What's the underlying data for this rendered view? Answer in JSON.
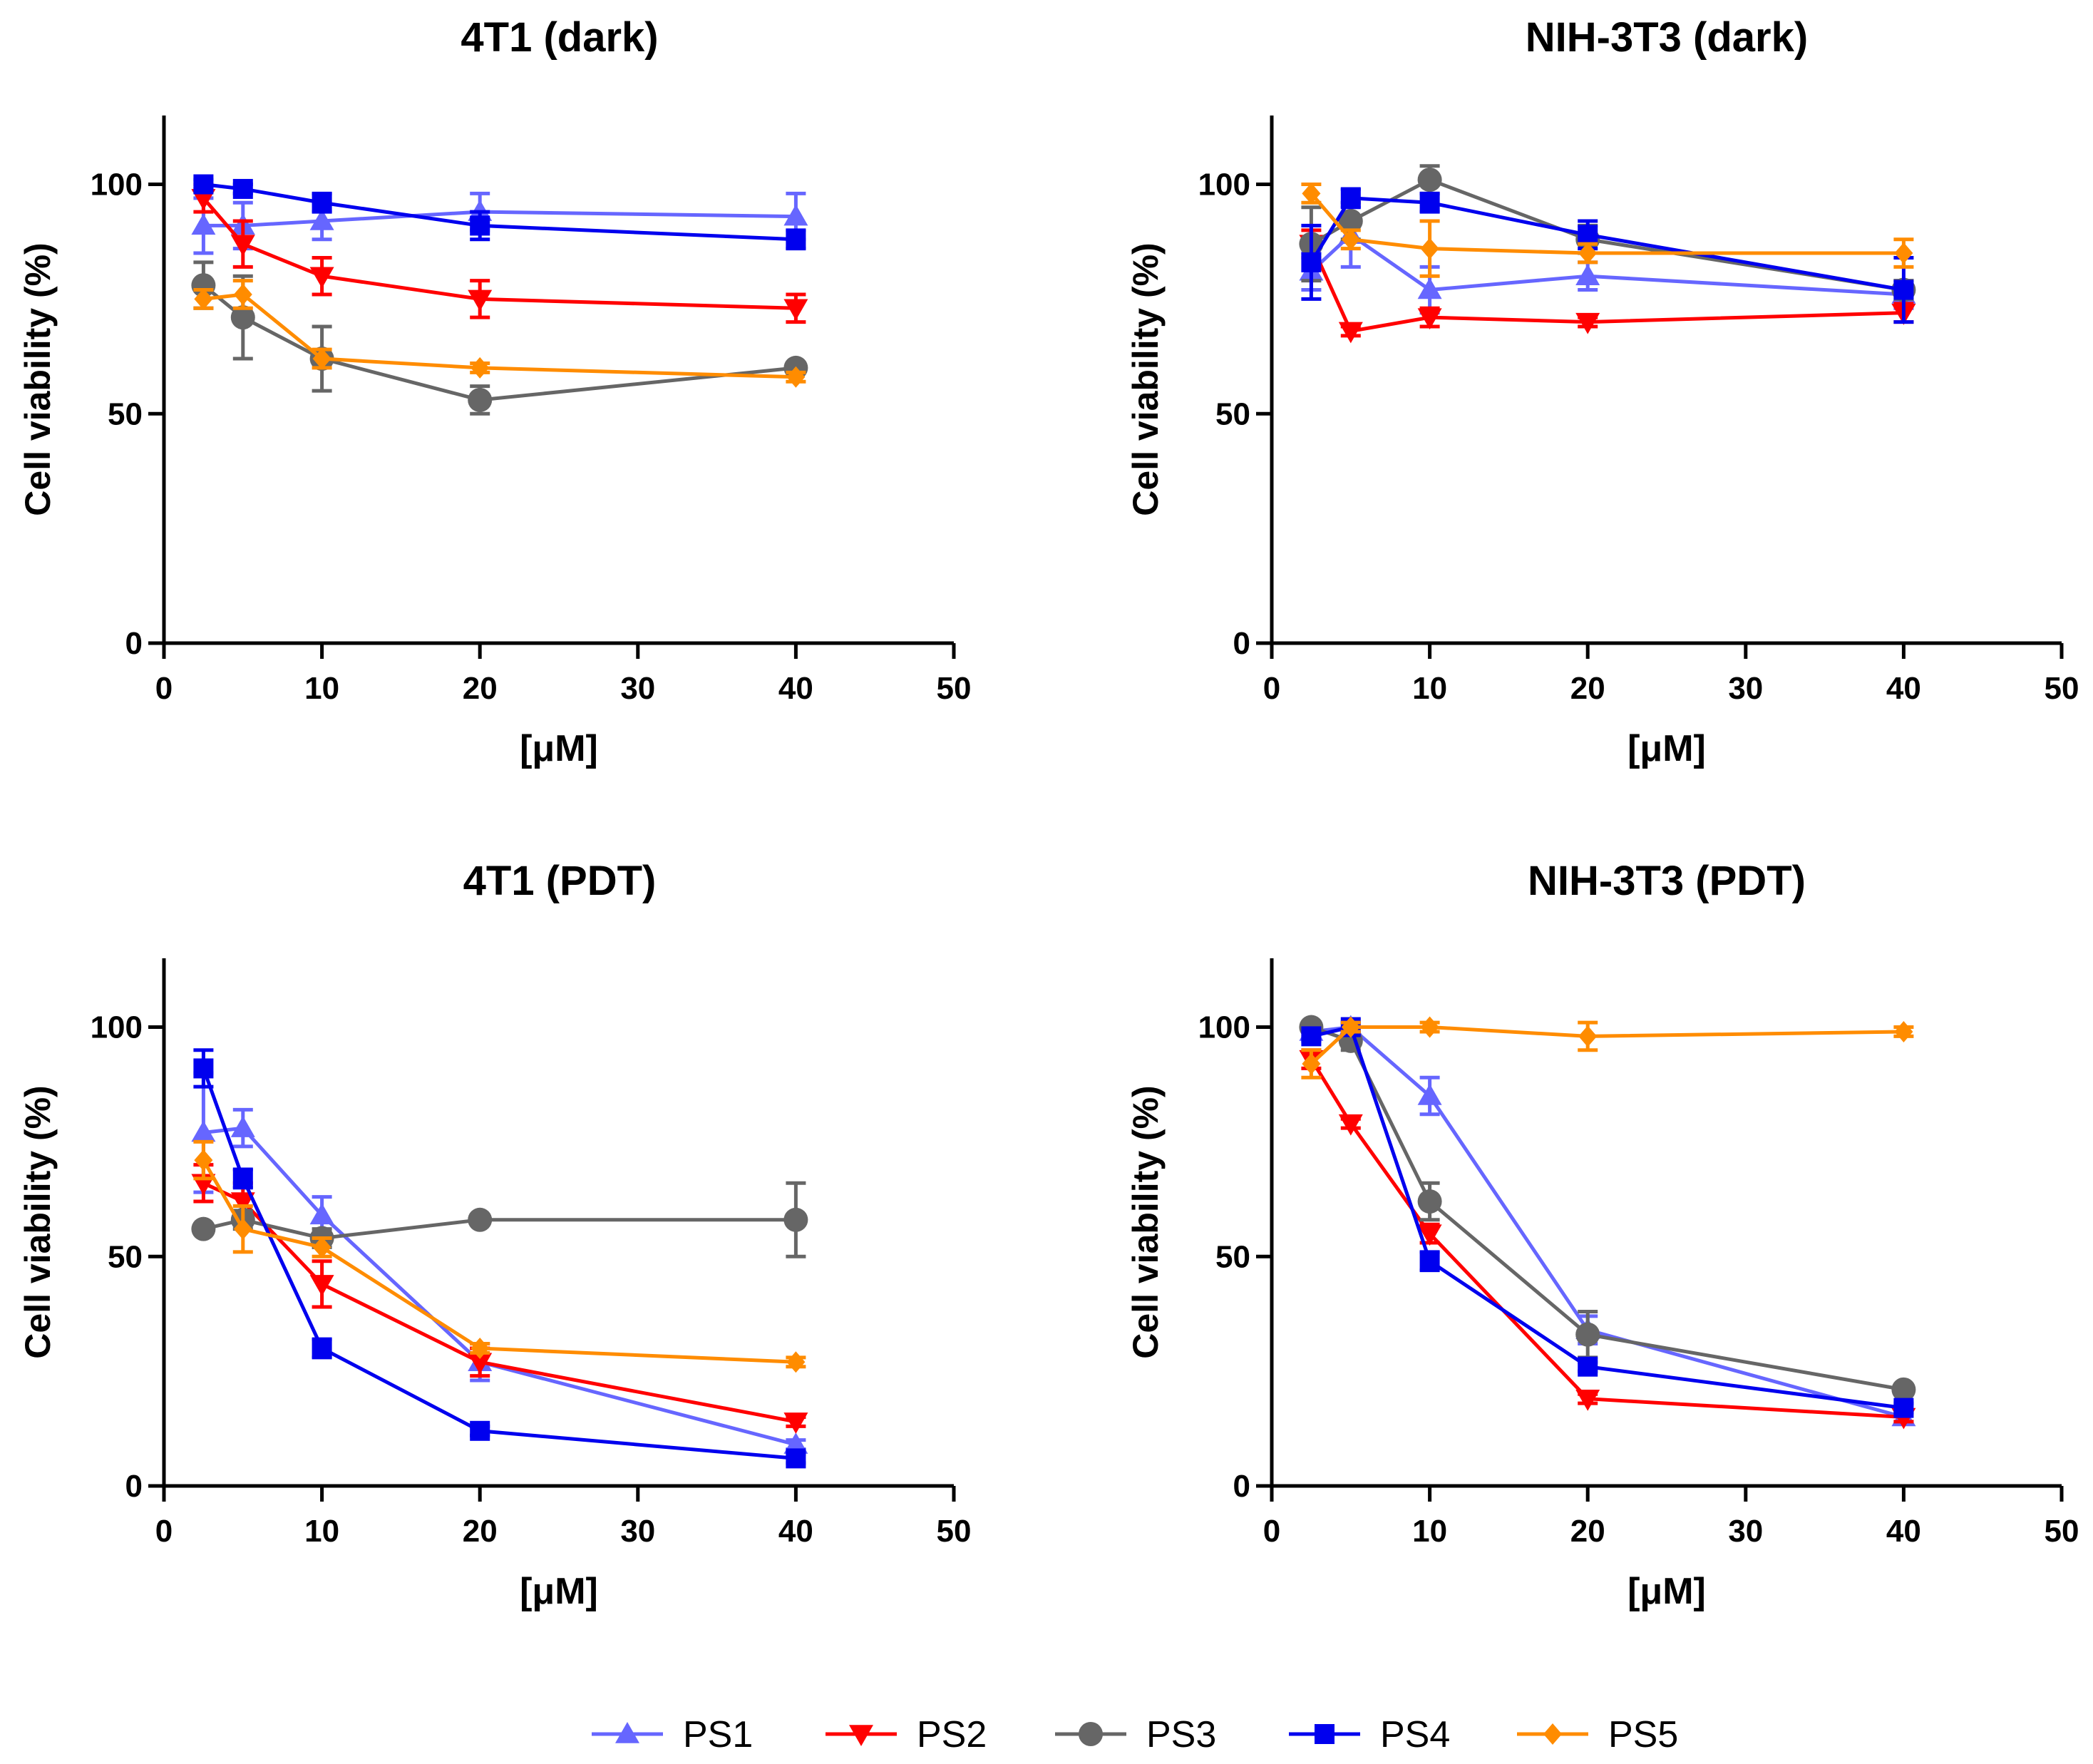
{
  "legend": [
    {
      "name": "PS1",
      "color": "#6666ff",
      "marker": "triangle-up"
    },
    {
      "name": "PS2",
      "color": "#ff0000",
      "marker": "triangle-down"
    },
    {
      "name": "PS3",
      "color": "#666666",
      "marker": "circle"
    },
    {
      "name": "PS4",
      "color": "#0000ee",
      "marker": "square"
    },
    {
      "name": "PS5",
      "color": "#ff8c00",
      "marker": "diamond"
    }
  ],
  "chart_data": [
    {
      "type": "line",
      "title": "4T1 (dark)",
      "xlabel": "[μM]",
      "ylabel": "Cell viability (%)",
      "xlim": [
        0,
        50
      ],
      "ylim": [
        0,
        115
      ],
      "xticks": [
        0,
        10,
        20,
        30,
        40,
        50
      ],
      "yticks": [
        0,
        50,
        100
      ],
      "x": [
        2.5,
        5,
        10,
        20,
        40
      ],
      "series": [
        {
          "name": "PS1",
          "values": [
            91,
            91,
            92,
            94,
            93
          ],
          "errors": [
            6,
            5,
            4,
            4,
            5
          ]
        },
        {
          "name": "PS2",
          "values": [
            97,
            87,
            80,
            75,
            73
          ],
          "errors": [
            3,
            5,
            4,
            4,
            3
          ]
        },
        {
          "name": "PS3",
          "values": [
            78,
            71,
            62,
            53,
            60
          ],
          "errors": [
            5,
            9,
            7,
            3,
            1
          ]
        },
        {
          "name": "PS4",
          "values": [
            100,
            99,
            96,
            91,
            88
          ],
          "errors": [
            1,
            1,
            2,
            3,
            2
          ]
        },
        {
          "name": "PS5",
          "values": [
            75,
            76,
            62,
            60,
            58
          ],
          "errors": [
            2,
            3,
            2,
            1,
            1
          ]
        }
      ]
    },
    {
      "type": "line",
      "title": "NIH-3T3 (dark)",
      "xlabel": "[μM]",
      "ylabel": "Cell viability (%)",
      "xlim": [
        0,
        50
      ],
      "ylim": [
        0,
        115
      ],
      "xticks": [
        0,
        10,
        20,
        30,
        40,
        50
      ],
      "yticks": [
        0,
        50,
        100
      ],
      "x": [
        2.5,
        5,
        10,
        20,
        40
      ],
      "series": [
        {
          "name": "PS1",
          "values": [
            81,
            89,
            77,
            80,
            76
          ],
          "errors": [
            4,
            7,
            5,
            3,
            3
          ]
        },
        {
          "name": "PS2",
          "values": [
            87,
            68,
            71,
            70,
            72
          ],
          "errors": [
            3,
            1,
            2,
            1,
            2
          ]
        },
        {
          "name": "PS3",
          "values": [
            87,
            92,
            101,
            88,
            77
          ],
          "errors": [
            8,
            4,
            3,
            3,
            2
          ]
        },
        {
          "name": "PS4",
          "values": [
            83,
            97,
            96,
            89,
            77
          ],
          "errors": [
            8,
            2,
            2,
            3,
            7
          ]
        },
        {
          "name": "PS5",
          "values": [
            98,
            88,
            86,
            85,
            85
          ],
          "errors": [
            2,
            2,
            6,
            2,
            3
          ]
        }
      ]
    },
    {
      "type": "line",
      "title": "4T1 (PDT)",
      "xlabel": "[μM]",
      "ylabel": "Cell viability (%)",
      "xlim": [
        0,
        50
      ],
      "ylim": [
        0,
        115
      ],
      "xticks": [
        0,
        10,
        20,
        30,
        40,
        50
      ],
      "yticks": [
        0,
        50,
        100
      ],
      "x": [
        2.5,
        5,
        10,
        20,
        40
      ],
      "series": [
        {
          "name": "PS1",
          "values": [
            77,
            78,
            59,
            27,
            9
          ],
          "errors": [
            13,
            4,
            4,
            4,
            1
          ]
        },
        {
          "name": "PS2",
          "values": [
            66,
            62,
            44,
            27,
            14
          ],
          "errors": [
            4,
            4,
            5,
            3,
            1
          ]
        },
        {
          "name": "PS3",
          "values": [
            56,
            58,
            54,
            58,
            58
          ],
          "errors": [
            1,
            2,
            2,
            1,
            8
          ]
        },
        {
          "name": "PS4",
          "values": [
            91,
            67,
            30,
            12,
            6
          ],
          "errors": [
            4,
            2,
            2,
            1,
            1
          ]
        },
        {
          "name": "PS5",
          "values": [
            71,
            56,
            52,
            30,
            27
          ],
          "errors": [
            4,
            5,
            2,
            1,
            1
          ]
        }
      ]
    },
    {
      "type": "line",
      "title": "NIH-3T3 (PDT)",
      "xlabel": "[μM]",
      "ylabel": "Cell viability (%)",
      "xlim": [
        0,
        50
      ],
      "ylim": [
        0,
        115
      ],
      "xticks": [
        0,
        10,
        20,
        30,
        40,
        50
      ],
      "yticks": [
        0,
        50,
        100
      ],
      "x": [
        2.5,
        5,
        10,
        20,
        40
      ],
      "series": [
        {
          "name": "PS1",
          "values": [
            99,
            100,
            85,
            34,
            15
          ],
          "errors": [
            1,
            1,
            4,
            3,
            1
          ]
        },
        {
          "name": "PS2",
          "values": [
            93,
            79,
            55,
            19,
            15
          ],
          "errors": [
            2,
            1,
            2,
            1,
            1
          ]
        },
        {
          "name": "PS3",
          "values": [
            100,
            97,
            62,
            33,
            21
          ],
          "errors": [
            1,
            2,
            4,
            5,
            1
          ]
        },
        {
          "name": "PS4",
          "values": [
            98,
            100,
            49,
            26,
            17
          ],
          "errors": [
            1,
            1,
            2,
            1,
            1
          ]
        },
        {
          "name": "PS5",
          "values": [
            92,
            100,
            100,
            98,
            99
          ],
          "errors": [
            3,
            1,
            1,
            3,
            1
          ]
        }
      ]
    }
  ]
}
